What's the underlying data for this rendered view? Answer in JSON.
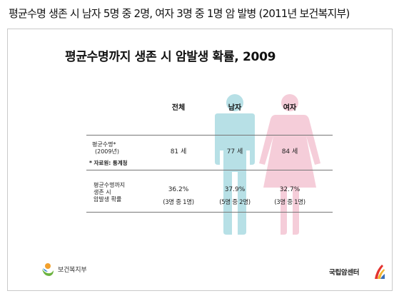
{
  "headline": "평균수명 생존 시 남자 5명 중 2명, 여자 3명 중 1명 암 발병 (2011년 보건복지부)",
  "slide": {
    "title": "평균수명까지 생존 시 암발생 확률, 2009",
    "columns": {
      "total": "전체",
      "male": "남자",
      "female": "여자"
    },
    "rows": [
      {
        "label_lines": [
          "평균수명*",
          "(2009년)"
        ],
        "total": "81 세",
        "male": "77 세",
        "female": "84 세"
      },
      {
        "label_lines": [
          "평균수명까지",
          "생존 시",
          "암발생 확률"
        ],
        "total": "36.2%",
        "total_sub": "(3명 중 1명)",
        "male": "37.9%",
        "male_sub": "(5명 중 2명)",
        "female": "32.7%",
        "female_sub": "(3명 중 1명)"
      }
    ],
    "footnote": "* 자료원: 통계청"
  },
  "logos": {
    "left_text": "보건복지부",
    "right_text": "국립암센터"
  },
  "colors": {
    "male_figure": "#b7e0e6",
    "female_figure": "#f5cdd9",
    "rule": "#777777"
  }
}
